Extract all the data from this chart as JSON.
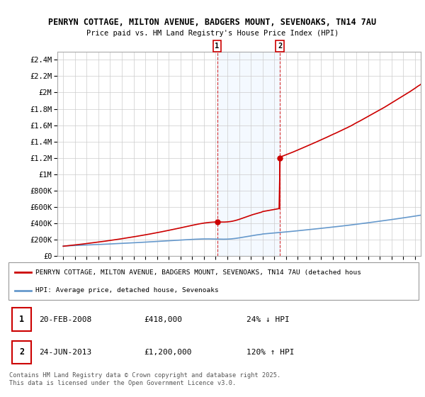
{
  "title1": "PENRYN COTTAGE, MILTON AVENUE, BADGERS MOUNT, SEVENOAKS, TN14 7AU",
  "title2": "Price paid vs. HM Land Registry's House Price Index (HPI)",
  "legend_line1": "PENRYN COTTAGE, MILTON AVENUE, BADGERS MOUNT, SEVENOAKS, TN14 7AU (detached hous",
  "legend_line2": "HPI: Average price, detached house, Sevenoaks",
  "marker1_date": "20-FEB-2008",
  "marker1_price": "£418,000",
  "marker1_pct": "24% ↓ HPI",
  "marker2_date": "24-JUN-2013",
  "marker2_price": "£1,200,000",
  "marker2_pct": "120% ↑ HPI",
  "footer": "Contains HM Land Registry data © Crown copyright and database right 2025.\nThis data is licensed under the Open Government Licence v3.0.",
  "marker1_x": 2008.13,
  "marker2_x": 2013.48,
  "marker1_y": 418000,
  "marker2_y": 1200000,
  "ylim": [
    0,
    2500000
  ],
  "xlim": [
    1994.5,
    2025.5
  ],
  "property_color": "#cc0000",
  "hpi_color": "#6699cc",
  "background_color": "#ffffff",
  "plot_bg_color": "#ffffff",
  "grid_color": "#cccccc",
  "shade_color": "#ddeeff"
}
